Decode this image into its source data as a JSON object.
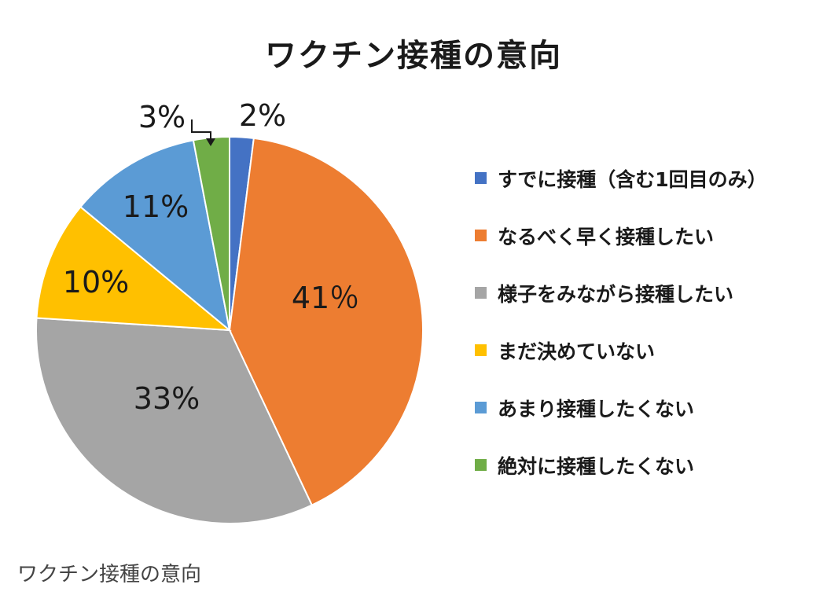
{
  "chart_data": {
    "type": "pie",
    "title": "ワクチン接種の意向",
    "categories": [
      "すでに接種（含む1回目のみ）",
      "なるべく早く接種したい",
      "様子をみながら接種したい",
      "まだ決めていない",
      "あまり接種したくない",
      "絶対に接種したくない"
    ],
    "values": [
      2,
      41,
      33,
      10,
      11,
      3
    ],
    "labels": [
      "2%",
      "41％",
      "33%",
      "10%",
      "11%",
      "3%"
    ],
    "colors": [
      "#4472C4",
      "#ED7D31",
      "#A5A5A5",
      "#FFC000",
      "#5B9BD5",
      "#70AD47"
    ],
    "legend": "right"
  },
  "caption": "ワクチン接種の意向"
}
